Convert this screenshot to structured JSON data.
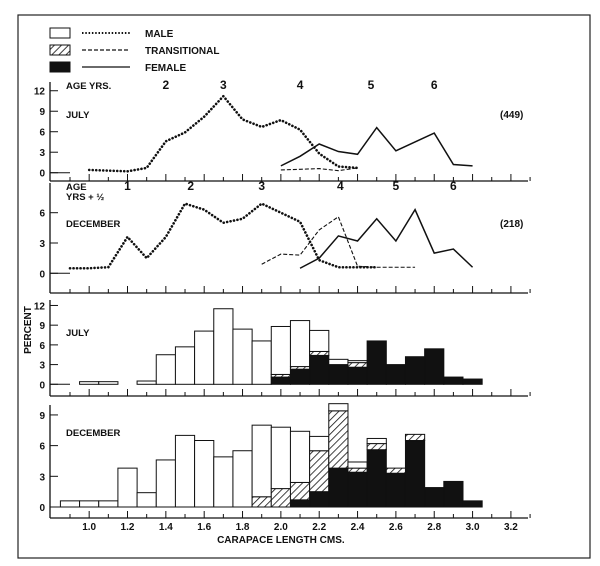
{
  "chart_data": [
    {
      "type": "line",
      "panel_label": "JULY",
      "count_label": "(449)",
      "age_label": "AGE  YRS.",
      "age_marks": [
        {
          "label": "2",
          "x": 1.4
        },
        {
          "label": "3",
          "x": 1.7
        },
        {
          "label": "4",
          "x": 2.1
        },
        {
          "label": "5",
          "x": 2.47
        },
        {
          "label": "6",
          "x": 2.8
        }
      ],
      "ylim": [
        0,
        12
      ],
      "yticks": [
        0,
        3,
        6,
        9,
        12
      ],
      "series": [
        {
          "name": "MALE",
          "style": "dotted",
          "x": [
            1.0,
            1.1,
            1.2,
            1.3,
            1.4,
            1.5,
            1.6,
            1.7,
            1.8,
            1.9,
            2.0,
            2.1,
            2.2,
            2.3,
            2.4
          ],
          "y": [
            0.4,
            0.3,
            0.2,
            0.7,
            4.6,
            5.9,
            8.2,
            11.2,
            7.8,
            6.7,
            7.7,
            6.3,
            2.8,
            0.9,
            0.7
          ]
        },
        {
          "name": "TRANSITIONAL",
          "style": "dashed",
          "x": [
            2.0,
            2.1,
            2.2,
            2.3,
            2.4
          ],
          "y": [
            0.4,
            0.5,
            0.6,
            0.3,
            0.7
          ]
        },
        {
          "name": "FEMALE",
          "style": "solid",
          "x": [
            2.0,
            2.1,
            2.2,
            2.3,
            2.4,
            2.5,
            2.6,
            2.7,
            2.8,
            2.9,
            3.0
          ],
          "y": [
            1.0,
            2.4,
            4.2,
            3.1,
            2.7,
            6.6,
            3.2,
            4.5,
            5.8,
            1.2,
            1.0
          ]
        }
      ]
    },
    {
      "type": "line",
      "panel_label": "DECEMBER",
      "count_label": "(218)",
      "age_label": "AGE\nYRS + ½",
      "age_marks": [
        {
          "label": "1",
          "x": 1.2
        },
        {
          "label": "2",
          "x": 1.53
        },
        {
          "label": "3",
          "x": 1.9
        },
        {
          "label": "4",
          "x": 2.31
        },
        {
          "label": "5",
          "x": 2.6
        },
        {
          "label": "6",
          "x": 2.9
        }
      ],
      "ylim": [
        0,
        6
      ],
      "yticks": [
        0,
        3,
        6
      ],
      "series": [
        {
          "name": "MALE",
          "style": "dotted",
          "x": [
            0.9,
            1.0,
            1.1,
            1.2,
            1.3,
            1.4,
            1.5,
            1.6,
            1.7,
            1.8,
            1.9,
            2.0,
            2.1,
            2.2,
            2.3,
            2.4,
            2.5
          ],
          "y": [
            0.5,
            0.5,
            0.6,
            3.6,
            1.5,
            3.6,
            6.9,
            6.3,
            5.0,
            5.4,
            6.9,
            6.0,
            5.1,
            1.3,
            0.6,
            0.6,
            0.6
          ]
        },
        {
          "name": "TRANSITIONAL",
          "style": "dashed",
          "x": [
            1.9,
            2.0,
            2.1,
            2.2,
            2.3,
            2.4,
            2.5,
            2.6,
            2.7
          ],
          "y": [
            0.9,
            1.9,
            1.8,
            4.3,
            5.6,
            0.7,
            0.6,
            0.6,
            0.6
          ]
        },
        {
          "name": "FEMALE",
          "style": "solid",
          "x": [
            2.1,
            2.2,
            2.3,
            2.4,
            2.5,
            2.6,
            2.7,
            2.8,
            2.9,
            3.0
          ],
          "y": [
            0.5,
            1.5,
            3.7,
            3.2,
            5.4,
            3.2,
            6.3,
            2.0,
            2.4,
            0.6
          ]
        }
      ]
    },
    {
      "type": "bar",
      "stacked": true,
      "panel_label": "JULY",
      "ylabel": "PERCENT",
      "ylim": [
        0,
        12
      ],
      "yticks": [
        0,
        3,
        6,
        9,
        12
      ],
      "categories": [
        1.0,
        1.1,
        1.2,
        1.3,
        1.4,
        1.5,
        1.6,
        1.7,
        1.8,
        1.9,
        2.0,
        2.1,
        2.2,
        2.3,
        2.4,
        2.5,
        2.6,
        2.7,
        2.8,
        2.9,
        3.0
      ],
      "series": [
        {
          "name": "FEMALE",
          "values": [
            0,
            0,
            0,
            0,
            0,
            0,
            0,
            0,
            0,
            0,
            1.1,
            2.3,
            4.4,
            3.0,
            2.6,
            6.6,
            3.0,
            4.2,
            5.4,
            1.1,
            0.8
          ]
        },
        {
          "name": "TRANSITIONAL",
          "values": [
            0,
            0,
            0,
            0,
            0,
            0,
            0,
            0,
            0,
            0,
            0.4,
            0.4,
            0.6,
            0,
            0.7,
            0,
            0,
            0,
            0,
            0,
            0
          ]
        },
        {
          "name": "MALE",
          "values": [
            0.4,
            0.4,
            0,
            0.5,
            4.5,
            5.7,
            8.1,
            11.5,
            8.4,
            6.6,
            7.3,
            7.0,
            3.2,
            0.8,
            0.3,
            0,
            0,
            0,
            0,
            0,
            0
          ]
        }
      ]
    },
    {
      "type": "bar",
      "stacked": true,
      "panel_label": "DECEMBER",
      "xlabel": "CARAPACE LENGTH CMS.",
      "xticks": [
        "1.0",
        "1.2",
        "1.4",
        "1.6",
        "1.8",
        "2.0",
        "2.2",
        "2.4",
        "2.6",
        "2.8",
        "3.0",
        "3.2"
      ],
      "xlim": [
        0.9,
        3.3
      ],
      "ylim": [
        0,
        9
      ],
      "yticks": [
        0,
        3,
        6,
        9
      ],
      "categories": [
        0.9,
        1.0,
        1.1,
        1.2,
        1.3,
        1.4,
        1.5,
        1.6,
        1.7,
        1.8,
        1.9,
        2.0,
        2.1,
        2.2,
        2.3,
        2.4,
        2.5,
        2.6,
        2.7,
        2.8,
        2.9,
        3.0
      ],
      "series": [
        {
          "name": "FEMALE",
          "values": [
            0,
            0,
            0,
            0,
            0,
            0,
            0,
            0,
            0,
            0,
            0,
            0,
            0.7,
            1.5,
            3.8,
            3.4,
            5.6,
            3.3,
            6.5,
            1.9,
            2.5,
            0.6
          ]
        },
        {
          "name": "TRANSITIONAL",
          "values": [
            0,
            0,
            0,
            0,
            0,
            0,
            0,
            0,
            0,
            0,
            1.0,
            1.8,
            1.7,
            4.0,
            5.6,
            0.4,
            0.6,
            0.5,
            0.6,
            0,
            0,
            0
          ]
        },
        {
          "name": "MALE",
          "values": [
            0.6,
            0.6,
            0.6,
            3.8,
            1.4,
            4.6,
            7.0,
            6.5,
            4.9,
            5.5,
            7.0,
            6.0,
            5.0,
            1.4,
            0.7,
            0.6,
            0.5,
            0,
            0,
            0,
            0,
            0
          ]
        }
      ]
    }
  ],
  "legend": {
    "position": "top-left",
    "items": [
      {
        "label": "MALE",
        "fill": "white",
        "line": "dotted"
      },
      {
        "label": "TRANSITIONAL",
        "fill": "hatched",
        "line": "dashed"
      },
      {
        "label": "FEMALE",
        "fill": "black",
        "line": "solid"
      }
    ]
  },
  "colors": {
    "ink": "#111111",
    "background": "#ffffff"
  }
}
